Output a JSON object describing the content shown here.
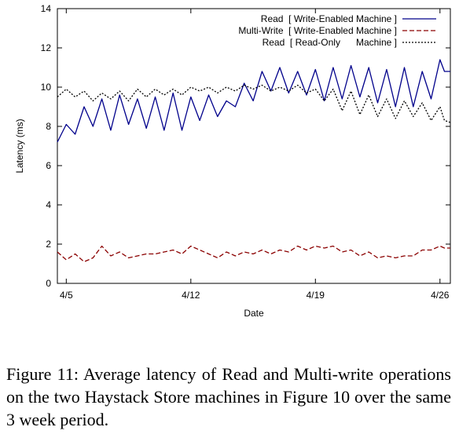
{
  "chart_data": {
    "type": "line",
    "xlabel": "Date",
    "ylabel": "Latency (ms)",
    "ylim": [
      0,
      14
    ],
    "yticks": [
      0,
      2,
      4,
      6,
      8,
      10,
      12,
      14
    ],
    "xlim": [
      "2010-04-04T12:00",
      "2010-04-26T14:00"
    ],
    "xtick_labels": [
      "4/5",
      "4/12",
      "4/19",
      "4/26"
    ],
    "xtick_dates": [
      "2010-04-05",
      "2010-04-12",
      "2010-04-19",
      "2010-04-26"
    ],
    "grid": false,
    "legend_position": "top-right",
    "series": [
      {
        "name": "Read  [ Write-Enabled Machine ]",
        "color": "#00008b",
        "dash": "solid",
        "x": [
          "2010-04-04T12:00",
          "2010-04-05T00:00",
          "2010-04-05T12:00",
          "2010-04-06T00:00",
          "2010-04-06T12:00",
          "2010-04-07T00:00",
          "2010-04-07T12:00",
          "2010-04-08T00:00",
          "2010-04-08T12:00",
          "2010-04-09T00:00",
          "2010-04-09T12:00",
          "2010-04-10T00:00",
          "2010-04-10T12:00",
          "2010-04-11T00:00",
          "2010-04-11T12:00",
          "2010-04-12T00:00",
          "2010-04-12T12:00",
          "2010-04-13T00:00",
          "2010-04-13T12:00",
          "2010-04-14T00:00",
          "2010-04-14T12:00",
          "2010-04-15T00:00",
          "2010-04-15T12:00",
          "2010-04-16T00:00",
          "2010-04-16T12:00",
          "2010-04-17T00:00",
          "2010-04-17T12:00",
          "2010-04-18T00:00",
          "2010-04-18T12:00",
          "2010-04-19T00:00",
          "2010-04-19T12:00",
          "2010-04-20T00:00",
          "2010-04-20T12:00",
          "2010-04-21T00:00",
          "2010-04-21T12:00",
          "2010-04-22T00:00",
          "2010-04-22T12:00",
          "2010-04-23T00:00",
          "2010-04-23T12:00",
          "2010-04-24T00:00",
          "2010-04-24T12:00",
          "2010-04-25T00:00",
          "2010-04-25T12:00",
          "2010-04-26T00:00",
          "2010-04-26T06:00",
          "2010-04-26T14:00"
        ],
        "y": [
          7.2,
          8.1,
          7.6,
          9.0,
          8.0,
          9.4,
          7.8,
          9.6,
          8.1,
          9.4,
          7.9,
          9.5,
          7.8,
          9.7,
          7.8,
          9.5,
          8.3,
          9.6,
          8.5,
          9.3,
          9.0,
          10.2,
          9.3,
          10.8,
          9.8,
          11.0,
          9.7,
          10.8,
          9.6,
          10.9,
          9.3,
          11.0,
          9.4,
          11.1,
          9.5,
          11.0,
          9.2,
          10.9,
          9.0,
          11.0,
          9.0,
          10.8,
          9.4,
          11.4,
          10.8,
          10.8
        ]
      },
      {
        "name": "Multi-Write  [ Write-Enabled Machine ]",
        "color": "#8b0000",
        "dash": "6,3",
        "x": [
          "2010-04-04T12:00",
          "2010-04-05T00:00",
          "2010-04-05T12:00",
          "2010-04-06T00:00",
          "2010-04-06T12:00",
          "2010-04-07T00:00",
          "2010-04-07T12:00",
          "2010-04-08T00:00",
          "2010-04-08T12:00",
          "2010-04-09T00:00",
          "2010-04-09T12:00",
          "2010-04-10T00:00",
          "2010-04-10T12:00",
          "2010-04-11T00:00",
          "2010-04-11T12:00",
          "2010-04-12T00:00",
          "2010-04-12T12:00",
          "2010-04-13T00:00",
          "2010-04-13T12:00",
          "2010-04-14T00:00",
          "2010-04-14T12:00",
          "2010-04-15T00:00",
          "2010-04-15T12:00",
          "2010-04-16T00:00",
          "2010-04-16T12:00",
          "2010-04-17T00:00",
          "2010-04-17T12:00",
          "2010-04-18T00:00",
          "2010-04-18T12:00",
          "2010-04-19T00:00",
          "2010-04-19T12:00",
          "2010-04-20T00:00",
          "2010-04-20T12:00",
          "2010-04-21T00:00",
          "2010-04-21T12:00",
          "2010-04-22T00:00",
          "2010-04-22T12:00",
          "2010-04-23T00:00",
          "2010-04-23T12:00",
          "2010-04-24T00:00",
          "2010-04-24T12:00",
          "2010-04-25T00:00",
          "2010-04-25T12:00",
          "2010-04-26T00:00",
          "2010-04-26T06:00",
          "2010-04-26T14:00"
        ],
        "y": [
          1.6,
          1.2,
          1.5,
          1.1,
          1.3,
          1.9,
          1.4,
          1.6,
          1.3,
          1.4,
          1.5,
          1.5,
          1.6,
          1.7,
          1.5,
          1.9,
          1.7,
          1.5,
          1.3,
          1.6,
          1.4,
          1.6,
          1.5,
          1.7,
          1.5,
          1.7,
          1.6,
          1.9,
          1.7,
          1.9,
          1.8,
          1.9,
          1.6,
          1.7,
          1.4,
          1.6,
          1.3,
          1.4,
          1.3,
          1.4,
          1.4,
          1.7,
          1.7,
          1.9,
          1.8,
          1.8
        ]
      },
      {
        "name": "Read  [ Read-Only      Machine ]",
        "color": "#000000",
        "dash": "2,2",
        "x": [
          "2010-04-04T12:00",
          "2010-04-05T00:00",
          "2010-04-05T12:00",
          "2010-04-06T00:00",
          "2010-04-06T12:00",
          "2010-04-07T00:00",
          "2010-04-07T12:00",
          "2010-04-08T00:00",
          "2010-04-08T12:00",
          "2010-04-09T00:00",
          "2010-04-09T12:00",
          "2010-04-10T00:00",
          "2010-04-10T12:00",
          "2010-04-11T00:00",
          "2010-04-11T12:00",
          "2010-04-12T00:00",
          "2010-04-12T12:00",
          "2010-04-13T00:00",
          "2010-04-13T12:00",
          "2010-04-14T00:00",
          "2010-04-14T12:00",
          "2010-04-15T00:00",
          "2010-04-15T12:00",
          "2010-04-16T00:00",
          "2010-04-16T12:00",
          "2010-04-17T00:00",
          "2010-04-17T12:00",
          "2010-04-18T00:00",
          "2010-04-18T12:00",
          "2010-04-19T00:00",
          "2010-04-19T12:00",
          "2010-04-20T00:00",
          "2010-04-20T12:00",
          "2010-04-21T00:00",
          "2010-04-21T12:00",
          "2010-04-22T00:00",
          "2010-04-22T12:00",
          "2010-04-23T00:00",
          "2010-04-23T12:00",
          "2010-04-24T00:00",
          "2010-04-24T12:00",
          "2010-04-25T00:00",
          "2010-04-25T12:00",
          "2010-04-26T00:00",
          "2010-04-26T06:00",
          "2010-04-26T14:00"
        ],
        "y": [
          9.5,
          9.9,
          9.5,
          9.8,
          9.3,
          9.7,
          9.4,
          9.8,
          9.3,
          9.9,
          9.5,
          9.9,
          9.6,
          9.9,
          9.6,
          10.0,
          9.8,
          10.0,
          9.7,
          10.0,
          9.8,
          10.1,
          9.9,
          10.1,
          9.8,
          10.0,
          9.8,
          10.1,
          9.7,
          9.9,
          9.3,
          9.9,
          8.8,
          9.8,
          8.6,
          9.6,
          8.5,
          9.4,
          8.4,
          9.3,
          8.5,
          9.2,
          8.3,
          9.0,
          8.3,
          8.2
        ]
      }
    ]
  },
  "caption": "Figure 11: Average latency of Read and Multi-write operations on the two Haystack Store machines in Figure 10 over the same 3 week period."
}
